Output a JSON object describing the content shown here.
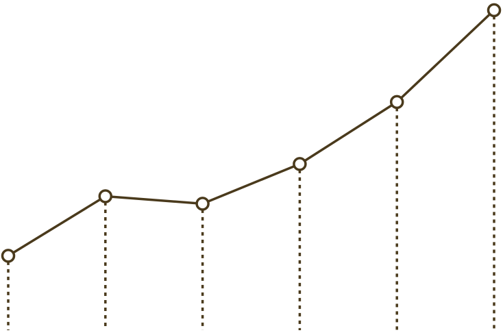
{
  "chart_data": {
    "type": "line",
    "x": [
      1,
      2,
      3,
      4,
      5,
      6
    ],
    "values": [
      26,
      50,
      47,
      63,
      88,
      125
    ],
    "ylim": [
      -4,
      128
    ],
    "grid": false,
    "axes_visible": false,
    "marker": "open-circle",
    "drop_lines": "dashed",
    "line_color": "#4a3a1c",
    "marker_fill": "#ffffff"
  }
}
